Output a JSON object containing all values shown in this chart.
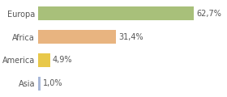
{
  "categories": [
    "Asia",
    "America",
    "Africa",
    "Europa"
  ],
  "values": [
    1.0,
    4.9,
    31.4,
    62.7
  ],
  "labels": [
    "1,0%",
    "4,9%",
    "31,4%",
    "62,7%"
  ],
  "bar_colors": [
    "#a8b8d8",
    "#e8c84a",
    "#e8b480",
    "#a8c07a"
  ],
  "background_color": "#ffffff",
  "plot_bg_color": "#ffffff",
  "xlim": [
    0,
    75
  ],
  "bar_height": 0.6,
  "label_fontsize": 7,
  "tick_fontsize": 7,
  "grid_color": "#dddddd",
  "text_color": "#555555"
}
